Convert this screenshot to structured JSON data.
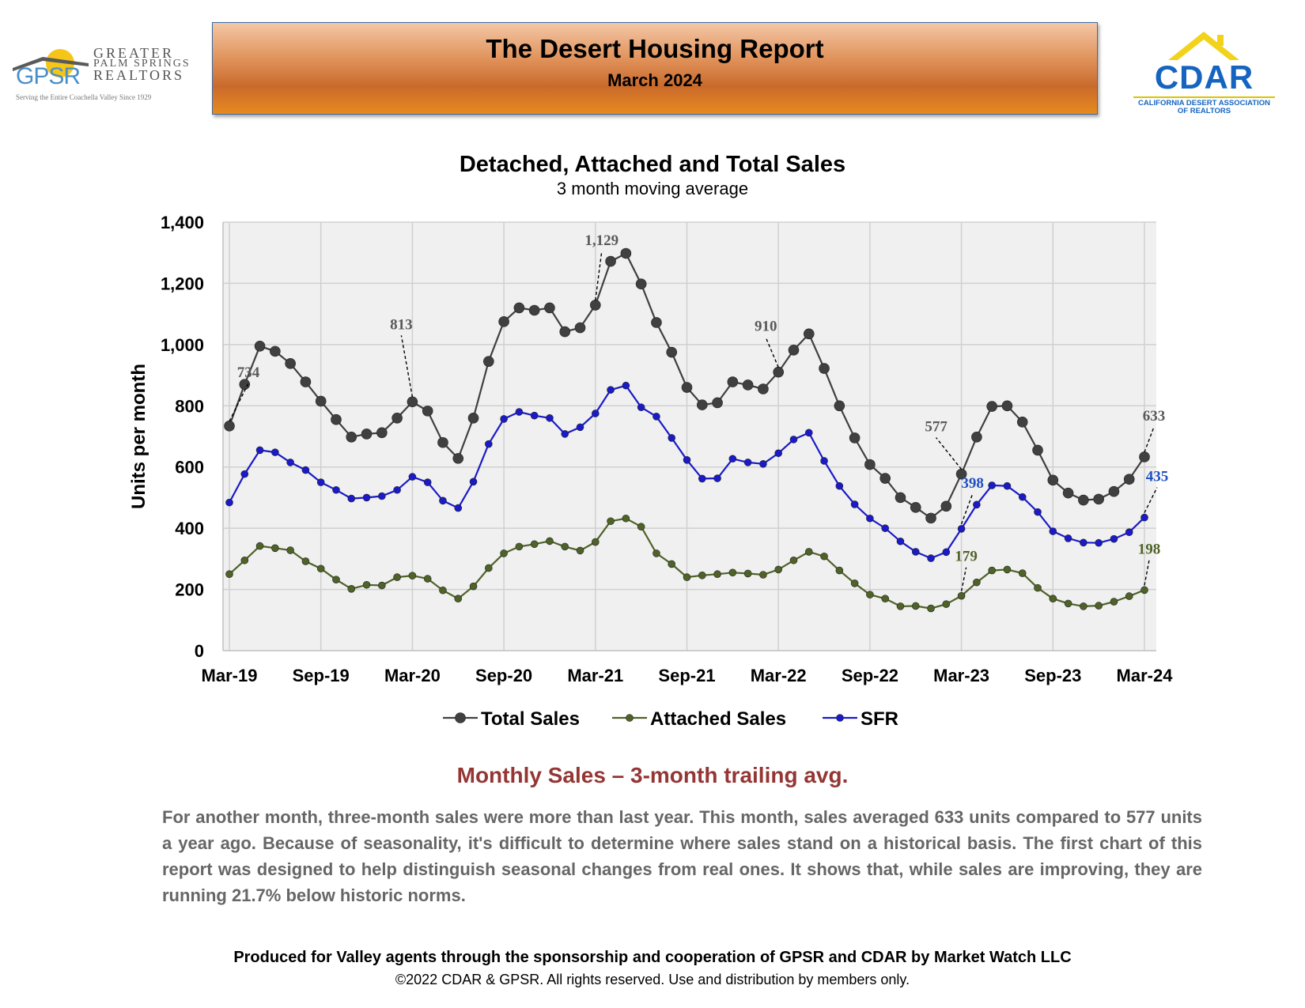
{
  "header": {
    "gpsr_logo": {
      "abbr": "GPSR",
      "name_line1": "GREATER",
      "name_line2": "PALM SPRINGS",
      "name_line3": "REALTORS",
      "tagline": "Serving the Entire Coachella Valley Since 1929"
    },
    "title": "The Desert Housing Report",
    "subtitle": "March 2024",
    "cdar_logo": {
      "name": "CDAR",
      "line1": "CALIFORNIA DESERT ASSOCIATION",
      "line2": "OF REALTORS"
    }
  },
  "chart_data": {
    "type": "line",
    "title": "Detached, Attached and Total Sales",
    "subtitle": "3 month moving average",
    "ylabel": "Units per month",
    "xlabel": "",
    "ylim": [
      0,
      1400
    ],
    "yticks": [
      0,
      200,
      400,
      600,
      800,
      1000,
      1200,
      1400
    ],
    "ytick_labels": [
      "0",
      "200",
      "400",
      "600",
      "800",
      "1,000",
      "1,200",
      "1,400"
    ],
    "x_start": "Mar-19",
    "xtick_labels": [
      "Mar-19",
      "Sep-19",
      "Mar-20",
      "Sep-20",
      "Mar-21",
      "Sep-21",
      "Mar-22",
      "Sep-22",
      "Mar-23",
      "Sep-23",
      "Mar-24"
    ],
    "xtick_step_months": 6,
    "grid": true,
    "legend_position": "bottom",
    "series": [
      {
        "name": "Total Sales",
        "color": "#404040",
        "values": [
          734,
          870,
          995,
          978,
          938,
          878,
          815,
          755,
          698,
          708,
          712,
          760,
          813,
          783,
          680,
          628,
          760,
          945,
          1075,
          1120,
          1112,
          1120,
          1042,
          1055,
          1129,
          1272,
          1298,
          1198,
          1072,
          975,
          860,
          803,
          810,
          878,
          868,
          855,
          910,
          982,
          1035,
          922,
          800,
          695,
          608,
          563,
          500,
          468,
          433,
          472,
          577,
          698,
          798,
          800,
          747,
          655,
          557,
          515,
          492,
          495,
          520,
          560,
          633
        ]
      },
      {
        "name": "Attached Sales",
        "color": "#4f6228",
        "values": [
          250,
          295,
          342,
          335,
          328,
          292,
          268,
          232,
          202,
          215,
          213,
          240,
          245,
          235,
          197,
          170,
          210,
          270,
          318,
          340,
          348,
          358,
          340,
          327,
          355,
          423,
          432,
          405,
          318,
          283,
          240,
          246,
          250,
          255,
          252,
          248,
          265,
          295,
          323,
          308,
          262,
          220,
          183,
          170,
          145,
          146,
          138,
          152,
          179,
          223,
          262,
          265,
          253,
          205,
          170,
          154,
          145,
          147,
          160,
          178,
          198
        ]
      },
      {
        "name": "SFR",
        "color": "#1a1ac8",
        "values": [
          484,
          577,
          655,
          648,
          615,
          590,
          550,
          525,
          497,
          500,
          505,
          525,
          568,
          550,
          490,
          466,
          552,
          675,
          757,
          780,
          768,
          760,
          708,
          730,
          775,
          852,
          866,
          795,
          765,
          695,
          623,
          562,
          563,
          627,
          615,
          610,
          645,
          690,
          712,
          620,
          538,
          478,
          432,
          400,
          357,
          323,
          302,
          322,
          398,
          477,
          540,
          538,
          502,
          453,
          390,
          367,
          353,
          352,
          365,
          387,
          435
        ]
      }
    ],
    "annotations": [
      {
        "series": "Total Sales",
        "index": 0,
        "text": "734"
      },
      {
        "series": "Total Sales",
        "index": 12,
        "text": "813"
      },
      {
        "series": "Total Sales",
        "index": 24,
        "text": "1,129"
      },
      {
        "series": "Total Sales",
        "index": 36,
        "text": "910"
      },
      {
        "series": "Total Sales",
        "index": 48,
        "text": "577"
      },
      {
        "series": "Total Sales",
        "index": 60,
        "text": "633"
      },
      {
        "series": "SFR",
        "index": 48,
        "text": "398"
      },
      {
        "series": "SFR",
        "index": 60,
        "text": "435"
      },
      {
        "series": "Attached Sales",
        "index": 48,
        "text": "179"
      },
      {
        "series": "Attached Sales",
        "index": 60,
        "text": "198"
      }
    ]
  },
  "section": {
    "heading": "Monthly Sales – 3-month trailing avg.",
    "body": "For another month, three-month sales were more than last year. This month, sales averaged 633 units compared to 577 units a year ago. Because of seasonality, it's difficult to determine where sales stand on a historical basis. The first chart of this report was designed to help distinguish seasonal changes from real ones. It shows that, while sales are improving, they are running 21.7% below historic norms."
  },
  "footer": {
    "line1": "Produced for Valley agents through the sponsorship and cooperation of GPSR and CDAR by Market Watch LLC",
    "line2": "©2022 CDAR & GPSR.  All rights reserved.  Use and distribution by members only."
  }
}
